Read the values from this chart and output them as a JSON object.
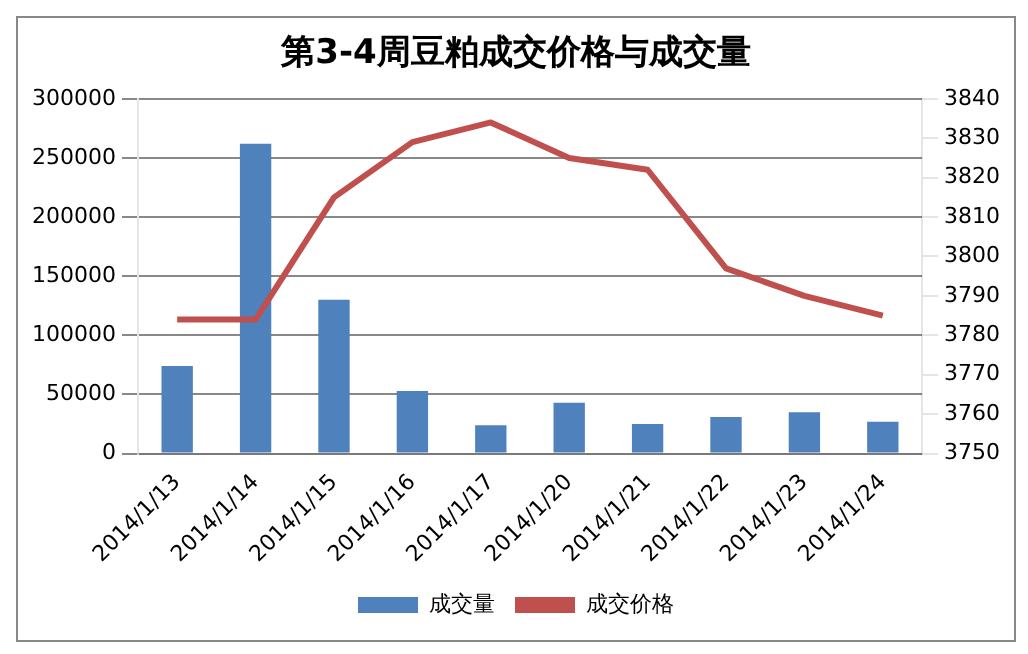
{
  "chart_data": {
    "type": "bar",
    "title": "第3-4周豆粕成交价格与成交量",
    "categories": [
      "2014/1/13",
      "2014/1/14",
      "2014/1/15",
      "2014/1/16",
      "2014/1/17",
      "2014/1/20",
      "2014/1/21",
      "2014/1/22",
      "2014/1/23",
      "2014/1/24"
    ],
    "series": [
      {
        "name": "成交量",
        "color": "#4f81bd",
        "values": [
          74000,
          262000,
          130000,
          53000,
          24000,
          43000,
          25000,
          31000,
          35000,
          27000
        ]
      },
      {
        "name": "成交价格",
        "type": "line",
        "axis": "y2",
        "color": "#c0504d",
        "values": [
          3784,
          3784,
          3815,
          3829,
          3834,
          3825,
          3822,
          3797,
          3790,
          3785
        ]
      }
    ],
    "ylim": [
      0,
      300000
    ],
    "yticks": [
      0,
      50000,
      100000,
      150000,
      200000,
      250000,
      300000
    ],
    "y2lim": [
      3750,
      3840
    ],
    "y2ticks": [
      3750,
      3760,
      3770,
      3780,
      3790,
      3800,
      3810,
      3820,
      3830,
      3840
    ],
    "grid": "y",
    "legend": "bottom",
    "marker": "none",
    "line_style": "solid"
  }
}
